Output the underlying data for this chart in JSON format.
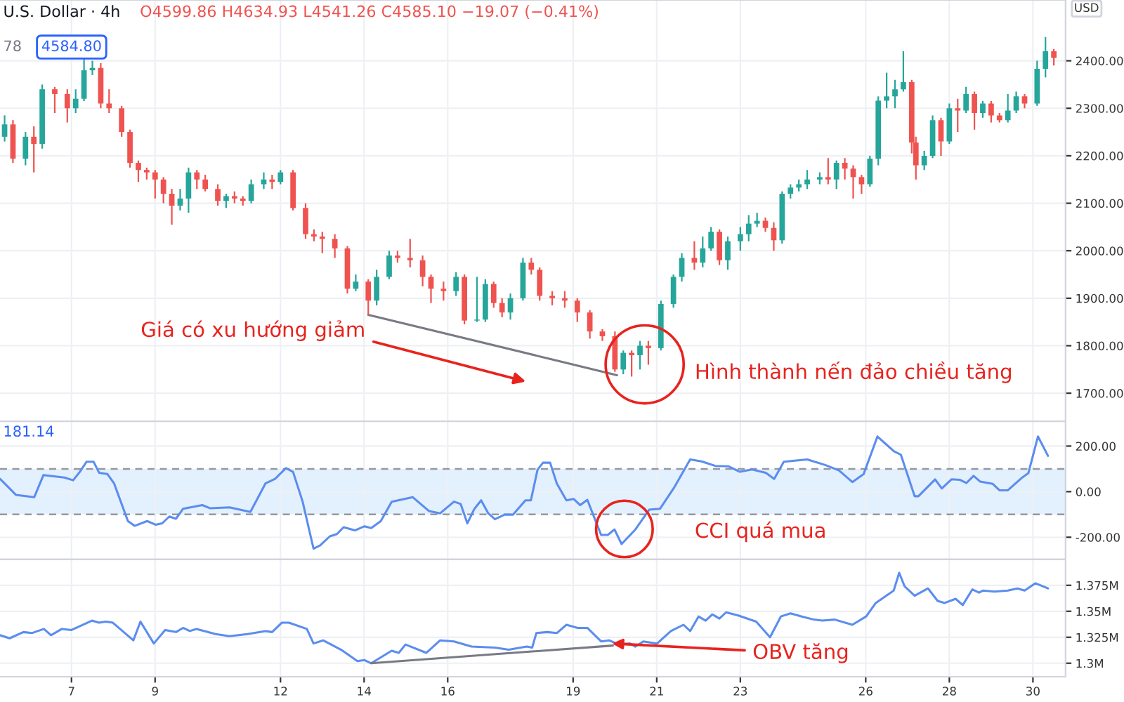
{
  "chart_data": [
    {
      "type": "candlestick",
      "title": "U.S. Dollar · 4h",
      "ylabel": "USD",
      "x": [
        5.4,
        5.6,
        5.9,
        6.1,
        6.3,
        6.6,
        6.9,
        7.1,
        7.3,
        7.5,
        7.7,
        7.9,
        8.2,
        8.4,
        8.6,
        8.8,
        9.0,
        9.2,
        9.4,
        9.6,
        9.8,
        10.0,
        10.2,
        10.5,
        10.7,
        10.9,
        11.1,
        11.3,
        11.6,
        11.8,
        12.0,
        12.3,
        12.6,
        12.8,
        13.0,
        13.3,
        13.6,
        13.8,
        14.1,
        14.3,
        14.6,
        14.8,
        15.1,
        15.4,
        15.6,
        15.9,
        16.2,
        16.4,
        16.7,
        16.9,
        17.1,
        17.3,
        17.5,
        17.8,
        18.0,
        18.2,
        18.5,
        18.8,
        19.1,
        19.4,
        19.7,
        20.0,
        20.2,
        20.4,
        20.6,
        20.8,
        21.1,
        21.4,
        21.6,
        21.9,
        22.1,
        22.3,
        22.5,
        22.7,
        23.0,
        23.2,
        23.4,
        23.6,
        23.8,
        24.0,
        24.2,
        24.4,
        24.6,
        24.9,
        25.1,
        25.3,
        25.5,
        25.7,
        25.9,
        26.1,
        26.3,
        26.5,
        26.7,
        26.9,
        27.1,
        27.2,
        27.4,
        27.6,
        27.8,
        28.0,
        28.2,
        28.4,
        28.6,
        28.8,
        29.0,
        29.2,
        29.4,
        29.6,
        29.8,
        30.1,
        30.3,
        30.5
      ],
      "ohlc": [
        [
          2240,
          2285,
          2230,
          2266
        ],
        [
          2266,
          2275,
          2185,
          2194
        ],
        [
          2194,
          2250,
          2180,
          2240
        ],
        [
          2240,
          2262,
          2165,
          2225
        ],
        [
          2225,
          2350,
          2215,
          2340
        ],
        [
          2340,
          2345,
          2290,
          2330
        ],
        [
          2330,
          2340,
          2270,
          2300
        ],
        [
          2300,
          2340,
          2290,
          2320
        ],
        [
          2320,
          2405,
          2315,
          2380
        ],
        [
          2380,
          2400,
          2370,
          2385
        ],
        [
          2385,
          2395,
          2300,
          2310
        ],
        [
          2310,
          2340,
          2290,
          2300
        ],
        [
          2300,
          2305,
          2240,
          2250
        ],
        [
          2250,
          2255,
          2175,
          2185
        ],
        [
          2185,
          2190,
          2145,
          2170
        ],
        [
          2170,
          2175,
          2150,
          2165
        ],
        [
          2165,
          2170,
          2110,
          2150
        ],
        [
          2150,
          2155,
          2100,
          2120
        ],
        [
          2120,
          2130,
          2055,
          2095
        ],
        [
          2095,
          2130,
          2085,
          2110
        ],
        [
          2110,
          2175,
          2080,
          2165
        ],
        [
          2165,
          2170,
          2130,
          2150
        ],
        [
          2150,
          2160,
          2125,
          2130
        ],
        [
          2130,
          2140,
          2095,
          2105
        ],
        [
          2105,
          2120,
          2090,
          2115
        ],
        [
          2115,
          2125,
          2100,
          2110
        ],
        [
          2110,
          2115,
          2095,
          2105
        ],
        [
          2105,
          2150,
          2100,
          2140
        ],
        [
          2140,
          2165,
          2130,
          2150
        ],
        [
          2150,
          2160,
          2130,
          2145
        ],
        [
          2145,
          2170,
          2140,
          2165
        ],
        [
          2165,
          2170,
          2085,
          2090
        ],
        [
          2090,
          2100,
          2025,
          2035
        ],
        [
          2035,
          2045,
          2020,
          2030
        ],
        [
          2030,
          2040,
          1995,
          2025
        ],
        [
          2025,
          2035,
          1985,
          2005
        ],
        [
          2005,
          2010,
          1910,
          1920
        ],
        [
          1920,
          1950,
          1915,
          1935
        ],
        [
          1935,
          1940,
          1865,
          1895
        ],
        [
          1895,
          1960,
          1885,
          1945
        ],
        [
          1945,
          2000,
          1940,
          1990
        ],
        [
          1990,
          2000,
          1975,
          1985
        ],
        [
          1985,
          2025,
          1965,
          1980
        ],
        [
          1980,
          1990,
          1925,
          1945
        ],
        [
          1945,
          1950,
          1890,
          1920
        ],
        [
          1920,
          1935,
          1895,
          1915
        ],
        [
          1915,
          1955,
          1905,
          1945
        ],
        [
          1945,
          1950,
          1845,
          1853
        ],
        [
          1853,
          1945,
          1850,
          1855
        ],
        [
          1855,
          1940,
          1850,
          1930
        ],
        [
          1930,
          1935,
          1880,
          1890
        ],
        [
          1890,
          1900,
          1860,
          1870
        ],
        [
          1870,
          1910,
          1855,
          1900
        ],
        [
          1900,
          1985,
          1895,
          1975
        ],
        [
          1975,
          1985,
          1950,
          1960
        ],
        [
          1960,
          1965,
          1895,
          1905
        ],
        [
          1905,
          1915,
          1885,
          1900
        ],
        [
          1900,
          1915,
          1880,
          1895
        ],
        [
          1895,
          1900,
          1850,
          1870
        ],
        [
          1870,
          1875,
          1815,
          1830
        ],
        [
          1830,
          1835,
          1810,
          1820
        ],
        [
          1820,
          1830,
          1745,
          1750
        ],
        [
          1750,
          1790,
          1740,
          1785
        ],
        [
          1785,
          1790,
          1735,
          1780
        ],
        [
          1780,
          1810,
          1750,
          1800
        ],
        [
          1800,
          1810,
          1760,
          1795
        ],
        [
          1795,
          1895,
          1790,
          1888
        ],
        [
          1888,
          1950,
          1880,
          1945
        ],
        [
          1945,
          1995,
          1935,
          1985
        ],
        [
          1985,
          2020,
          1960,
          1975
        ],
        [
          1975,
          2030,
          1965,
          2005
        ],
        [
          2005,
          2050,
          2000,
          2040
        ],
        [
          2040,
          2045,
          1970,
          1980
        ],
        [
          1980,
          2030,
          1960,
          2020
        ],
        [
          2020,
          2050,
          2000,
          2035
        ],
        [
          2035,
          2075,
          2020,
          2057
        ],
        [
          2057,
          2080,
          2050,
          2063
        ],
        [
          2063,
          2070,
          2040,
          2048
        ],
        [
          2048,
          2060,
          2000,
          2022
        ],
        [
          2022,
          2125,
          2015,
          2120
        ],
        [
          2120,
          2140,
          2110,
          2133
        ],
        [
          2133,
          2150,
          2125,
          2140
        ],
        [
          2140,
          2170,
          2130,
          2150
        ],
        [
          2150,
          2165,
          2140,
          2155
        ],
        [
          2155,
          2195,
          2140,
          2150
        ],
        [
          2150,
          2190,
          2130,
          2185
        ],
        [
          2185,
          2195,
          2150,
          2173
        ],
        [
          2173,
          2180,
          2110,
          2155
        ],
        [
          2155,
          2160,
          2120,
          2140
        ],
        [
          2140,
          2200,
          2135,
          2194
        ],
        [
          2194,
          2325,
          2180,
          2316
        ],
        [
          2316,
          2375,
          2300,
          2325
        ],
        [
          2325,
          2360,
          2300,
          2340
        ],
        [
          2340,
          2420,
          2335,
          2355
        ],
        [
          2355,
          2360,
          2205,
          2228
        ],
        [
          2228,
          2240,
          2150,
          2180
        ],
        [
          2180,
          2210,
          2170,
          2200
        ],
        [
          2200,
          2285,
          2195,
          2275
        ],
        [
          2275,
          2280,
          2200,
          2230
        ],
        [
          2230,
          2310,
          2225,
          2300
        ],
        [
          2300,
          2320,
          2250,
          2295
        ],
        [
          2295,
          2345,
          2290,
          2330
        ],
        [
          2330,
          2335,
          2255,
          2290
        ],
        [
          2290,
          2315,
          2280,
          2310
        ],
        [
          2310,
          2315,
          2270,
          2285
        ],
        [
          2285,
          2290,
          2270,
          2275
        ],
        [
          2275,
          2330,
          2270,
          2295
        ],
        [
          2295,
          2335,
          2290,
          2325
        ],
        [
          2325,
          2330,
          2300,
          2310
        ],
        [
          2310,
          2400,
          2305,
          2383
        ],
        [
          2383,
          2450,
          2365,
          2420
        ],
        [
          2420,
          2425,
          2390,
          2406
        ]
      ],
      "colors": [
        "#26a69a",
        "#ef5350",
        "#26a69a",
        "#ef5350",
        "#26a69a",
        "#ef5350",
        "#ef5350",
        "#26a69a",
        "#26a69a",
        "#26a69a",
        "#ef5350",
        "#ef5350",
        "#ef5350",
        "#ef5350",
        "#ef5350",
        "#ef5350",
        "#ef5350",
        "#ef5350",
        "#ef5350",
        "#26a69a",
        "#26a69a",
        "#ef5350",
        "#ef5350",
        "#ef5350",
        "#26a69a",
        "#ef5350",
        "#ef5350",
        "#26a69a",
        "#26a69a",
        "#ef5350",
        "#26a69a",
        "#ef5350",
        "#ef5350",
        "#ef5350",
        "#ef5350",
        "#ef5350",
        "#ef5350",
        "#26a69a",
        "#ef5350",
        "#26a69a",
        "#26a69a",
        "#ef5350",
        "#ef5350",
        "#ef5350",
        "#ef5350",
        "#ef5350",
        "#26a69a",
        "#ef5350",
        "#26a69a",
        "#26a69a",
        "#ef5350",
        "#ef5350",
        "#26a69a",
        "#26a69a",
        "#ef5350",
        "#ef5350",
        "#ef5350",
        "#ef5350",
        "#ef5350",
        "#ef5350",
        "#ef5350",
        "#ef5350",
        "#26a69a",
        "#ef5350",
        "#26a69a",
        "#ef5350",
        "#26a69a",
        "#26a69a",
        "#26a69a",
        "#ef5350",
        "#26a69a",
        "#26a69a",
        "#ef5350",
        "#26a69a",
        "#26a69a",
        "#26a69a",
        "#26a69a",
        "#ef5350",
        "#ef5350",
        "#26a69a",
        "#26a69a",
        "#26a69a",
        "#26a69a",
        "#26a69a",
        "#ef5350",
        "#26a69a",
        "#ef5350",
        "#ef5350",
        "#ef5350",
        "#26a69a",
        "#26a69a",
        "#26a69a",
        "#26a69a",
        "#26a69a",
        "#ef5350",
        "#ef5350",
        "#26a69a",
        "#26a69a",
        "#ef5350",
        "#26a69a",
        "#ef5350",
        "#26a69a",
        "#ef5350",
        "#26a69a",
        "#ef5350",
        "#ef5350",
        "#26a69a",
        "#26a69a",
        "#ef5350",
        "#26a69a",
        "#26a69a",
        "#ef5350"
      ],
      "series": [
        {
          "type": "line",
          "x": [
            14.1,
            20.05
          ],
          "values": [
            1865,
            1738
          ],
          "color": "#787b86"
        }
      ],
      "xlim": [
        5.29,
        30.78
      ],
      "xticks": [
        7,
        9,
        12,
        14,
        16,
        19,
        21,
        23,
        26,
        28,
        30
      ],
      "ylim": [
        1641,
        2528
      ],
      "yticks": [
        {
          "value": 1700,
          "label": "1700.00"
        },
        {
          "value": 1800,
          "label": "1800.00"
        },
        {
          "value": 1900,
          "label": "1900.00"
        },
        {
          "value": 2000,
          "label": "2000.00"
        },
        {
          "value": 2100,
          "label": "2100.00"
        },
        {
          "value": 2200,
          "label": "2200.00"
        },
        {
          "value": 2300,
          "label": "2300.00"
        },
        {
          "value": 2400,
          "label": "2400.00"
        }
      ],
      "grid": true,
      "tick_labels": "y",
      "annotations": [
        "O4599.86 H4634.93 L4541.26 C4585.10 −19.07 (−0.41%)",
        "78",
        "4584.80",
        "Giá có xu hướng giảm",
        "Hình thành nến đảo chiều tăng"
      ]
    },
    {
      "type": "line",
      "series": [
        {
          "color": "#5b8def",
          "x": [
            5.29,
            5.67,
            6.11,
            6.33,
            6.83,
            7.04,
            7.2,
            7.36,
            7.53,
            7.66,
            7.86,
            8.02,
            8.35,
            8.51,
            8.81,
            9.01,
            9.17,
            9.34,
            9.5,
            9.67,
            10.13,
            10.32,
            10.78,
            11.28,
            11.64,
            11.87,
            12.13,
            12.3,
            12.53,
            12.79,
            12.95,
            13.18,
            13.35,
            13.51,
            13.78,
            14.01,
            14.17,
            14.4,
            14.66,
            15.16,
            15.55,
            15.82,
            16.15,
            16.31,
            16.47,
            16.64,
            16.8,
            16.97,
            17.13,
            17.36,
            17.56,
            17.86,
            17.99,
            18.15,
            18.28,
            18.45,
            18.61,
            18.84,
            19.01,
            19.17,
            19.34,
            19.67,
            19.83,
            19.99,
            20.16,
            20.49,
            20.82,
            21.08,
            21.41,
            21.8,
            22.07,
            22.4,
            22.72,
            22.99,
            23.28,
            23.61,
            23.81,
            24.04,
            24.6,
            25.03,
            25.36,
            25.68,
            25.95,
            26.28,
            26.67,
            26.84,
            27.17,
            27.26,
            27.66,
            27.82,
            28.05,
            28.25,
            28.41,
            28.58,
            28.74,
            29.04,
            29.2,
            29.4,
            29.73,
            29.89,
            30.12,
            30.36
          ],
          "values": [
            56,
            -14,
            -24,
            73,
            62,
            50,
            87,
            131,
            131,
            83,
            77,
            36,
            -129,
            -150,
            -129,
            -145,
            -139,
            -109,
            -119,
            -75,
            -59,
            -73,
            -69,
            -89,
            36,
            56,
            103,
            87,
            -44,
            -250,
            -236,
            -196,
            -186,
            -156,
            -170,
            -152,
            -160,
            -129,
            -44,
            -24,
            -85,
            -95,
            -44,
            -54,
            -139,
            -75,
            -38,
            -95,
            -121,
            -101,
            -101,
            -38,
            -38,
            97,
            127,
            127,
            36,
            -38,
            -32,
            -59,
            -36,
            -190,
            -190,
            -166,
            -230,
            -166,
            -79,
            -75,
            16,
            141,
            133,
            113,
            111,
            87,
            97,
            83,
            56,
            131,
            141,
            117,
            93,
            42,
            77,
            242,
            178,
            162,
            -20,
            -20,
            54,
            14,
            54,
            52,
            38,
            69,
            44,
            34,
            6,
            6,
            60,
            81,
            242,
            157
          ]
        }
      ],
      "bands": [
        {
          "axis": "y",
          "from": -100,
          "to": 100,
          "color": "#e3f0fd"
        }
      ],
      "ref_lines": [
        {
          "axis": "y",
          "value": 100,
          "color": "#9598a1",
          "line_style": "dashed"
        },
        {
          "axis": "y",
          "value": -100,
          "color": "#9598a1",
          "line_style": "dashed"
        }
      ],
      "xlim": [
        5.29,
        30.78
      ],
      "xticks": [
        7,
        9,
        12,
        14,
        16,
        19,
        21,
        23,
        26,
        28,
        30
      ],
      "ylim": [
        -297,
        309
      ],
      "yticks": [
        {
          "value": -200,
          "label": "-200.00"
        },
        {
          "value": 0,
          "label": "0.00"
        },
        {
          "value": 200,
          "label": "200.00"
        }
      ],
      "grid": true,
      "tick_labels": "y",
      "annotations": [
        "181.14",
        "CCI quá mua"
      ]
    },
    {
      "type": "line",
      "series": [
        {
          "color": "#5b8def",
          "x": [
            5.29,
            5.52,
            5.85,
            6.05,
            6.34,
            6.51,
            6.77,
            7.0,
            7.49,
            7.66,
            7.82,
            7.99,
            8.48,
            8.65,
            8.97,
            9.24,
            9.5,
            9.67,
            9.83,
            9.99,
            10.45,
            10.78,
            11.21,
            11.64,
            11.8,
            12.03,
            12.2,
            12.63,
            12.79,
            13.02,
            13.45,
            13.84,
            14.01,
            14.17,
            14.66,
            14.83,
            14.99,
            15.49,
            15.82,
            16.15,
            16.57,
            17.13,
            17.46,
            17.89,
            18.02,
            18.12,
            18.38,
            18.61,
            18.84,
            19.11,
            19.34,
            19.67,
            19.86,
            20.09,
            20.36,
            20.49,
            20.68,
            21.01,
            21.34,
            21.64,
            21.8,
            22.0,
            22.17,
            22.33,
            22.5,
            22.66,
            22.95,
            23.38,
            23.71,
            23.97,
            24.2,
            24.47,
            24.76,
            24.96,
            25.26,
            25.68,
            26.01,
            26.24,
            26.67,
            26.8,
            26.93,
            27.17,
            27.49,
            27.72,
            27.89,
            28.15,
            28.32,
            28.55,
            28.71,
            28.81,
            29.08,
            29.4,
            29.63,
            29.8,
            30.06,
            30.36
          ],
          "values": [
            1.327,
            1.324,
            1.33,
            1.329,
            1.333,
            1.327,
            1.333,
            1.332,
            1.341,
            1.339,
            1.34,
            1.339,
            1.322,
            1.34,
            1.319,
            1.332,
            1.33,
            1.334,
            1.331,
            1.333,
            1.328,
            1.326,
            1.328,
            1.331,
            1.33,
            1.339,
            1.339,
            1.333,
            1.319,
            1.322,
            1.313,
            1.302,
            1.303,
            1.3,
            1.312,
            1.31,
            1.318,
            1.31,
            1.322,
            1.321,
            1.316,
            1.315,
            1.313,
            1.316,
            1.315,
            1.329,
            1.33,
            1.329,
            1.337,
            1.334,
            1.334,
            1.321,
            1.322,
            1.318,
            1.319,
            1.316,
            1.321,
            1.319,
            1.331,
            1.337,
            1.331,
            1.345,
            1.341,
            1.347,
            1.343,
            1.349,
            1.346,
            1.34,
            1.325,
            1.345,
            1.348,
            1.345,
            1.342,
            1.341,
            1.342,
            1.337,
            1.345,
            1.358,
            1.37,
            1.387,
            1.374,
            1.365,
            1.372,
            1.36,
            1.358,
            1.362,
            1.356,
            1.371,
            1.368,
            1.37,
            1.369,
            1.37,
            1.372,
            1.37,
            1.377,
            1.372
          ]
        },
        {
          "color": "#787b86",
          "x": [
            14.17,
            19.95
          ],
          "values": [
            1.3,
            1.317
          ]
        }
      ],
      "xlim": [
        5.29,
        30.78
      ],
      "xticks": [
        7,
        9,
        12,
        14,
        16,
        19,
        21,
        23,
        26,
        28,
        30
      ],
      "ylim": [
        1.287,
        1.4
      ],
      "yticks": [
        {
          "value": 1.3,
          "label": "1.3M"
        },
        {
          "value": 1.325,
          "label": "1.325M"
        },
        {
          "value": 1.35,
          "label": "1.35M"
        },
        {
          "value": 1.375,
          "label": "1.375M"
        }
      ],
      "grid": true,
      "annotations": [
        {
          "text": "OBV tăng",
          "x": 19.93,
          "y": 1.319
        }
      ]
    }
  ]
}
